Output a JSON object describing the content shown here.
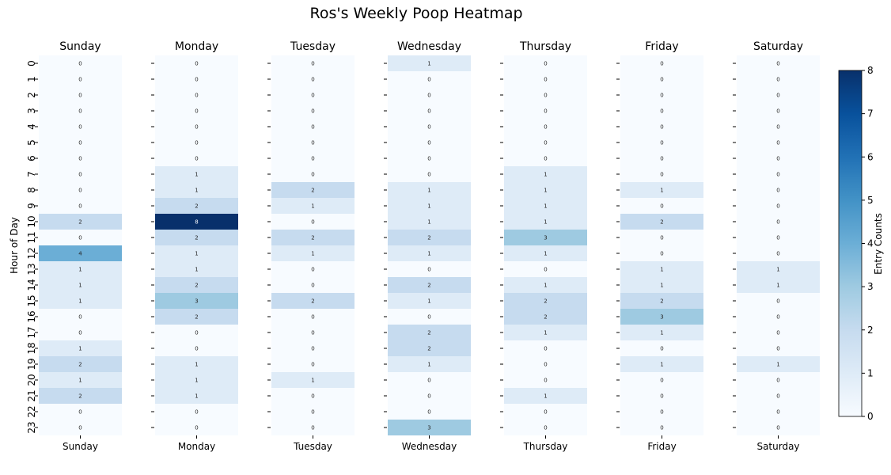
{
  "chart_data": {
    "type": "heatmap",
    "title": "Ros's Weekly Poop Heatmap",
    "ylabel": "Hour of Day",
    "colorbar_label": "Entry Counts",
    "colorbar_range": [
      0,
      8
    ],
    "colorbar_ticks": [
      "0",
      "1",
      "2",
      "3",
      "4",
      "5",
      "6",
      "7",
      "8"
    ],
    "colormap": "Blues",
    "hours": [
      "0",
      "1",
      "2",
      "3",
      "4",
      "5",
      "6",
      "7",
      "8",
      "9",
      "10",
      "11",
      "12",
      "13",
      "14",
      "15",
      "16",
      "17",
      "18",
      "19",
      "20",
      "21",
      "22",
      "23"
    ],
    "days": [
      {
        "name": "Sunday",
        "values": [
          0,
          0,
          0,
          0,
          0,
          0,
          0,
          0,
          0,
          0,
          2,
          0,
          4,
          1,
          1,
          1,
          0,
          0,
          1,
          2,
          1,
          2,
          0,
          0
        ]
      },
      {
        "name": "Monday",
        "values": [
          0,
          0,
          0,
          0,
          0,
          0,
          0,
          1,
          1,
          2,
          8,
          2,
          1,
          1,
          2,
          3,
          2,
          0,
          0,
          1,
          1,
          1,
          0,
          0
        ]
      },
      {
        "name": "Tuesday",
        "values": [
          0,
          0,
          0,
          0,
          0,
          0,
          0,
          0,
          2,
          1,
          0,
          2,
          1,
          0,
          0,
          2,
          0,
          0,
          0,
          0,
          1,
          0,
          0,
          0
        ]
      },
      {
        "name": "Wednesday",
        "values": [
          1,
          0,
          0,
          0,
          0,
          0,
          0,
          0,
          1,
          1,
          1,
          2,
          1,
          0,
          2,
          1,
          0,
          2,
          2,
          1,
          0,
          0,
          0,
          3
        ]
      },
      {
        "name": "Thursday",
        "values": [
          0,
          0,
          0,
          0,
          0,
          0,
          0,
          1,
          1,
          1,
          1,
          3,
          1,
          0,
          1,
          2,
          2,
          1,
          0,
          0,
          0,
          1,
          0,
          0
        ]
      },
      {
        "name": "Friday",
        "values": [
          0,
          0,
          0,
          0,
          0,
          0,
          0,
          0,
          1,
          0,
          2,
          0,
          0,
          1,
          1,
          2,
          3,
          1,
          0,
          1,
          0,
          0,
          0,
          0
        ]
      },
      {
        "name": "Saturday",
        "values": [
          0,
          0,
          0,
          0,
          0,
          0,
          0,
          0,
          0,
          0,
          0,
          0,
          0,
          1,
          1,
          0,
          0,
          0,
          0,
          1,
          0,
          0,
          0,
          0
        ]
      }
    ]
  }
}
